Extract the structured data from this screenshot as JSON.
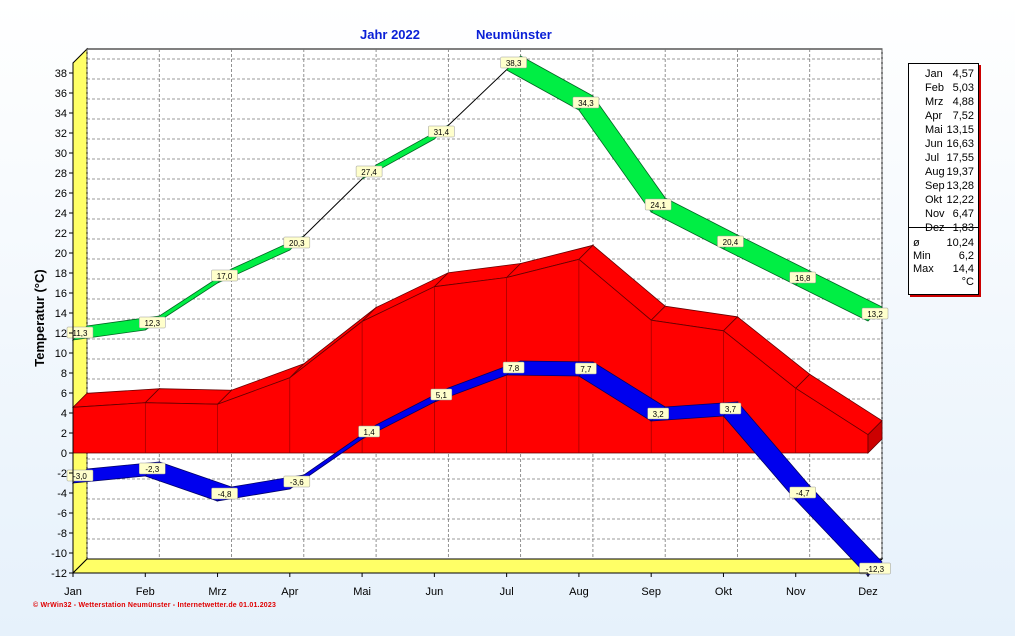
{
  "header": {
    "year_label": "Jahr  2022",
    "location": "Neumünster"
  },
  "footer": {
    "text": "© WrWin32 - Wetterstation Neumünster - Internetwetter.de  01.01.2023"
  },
  "legend": {
    "rows": [
      {
        "label": "Jan",
        "value": "4,57"
      },
      {
        "label": "Feb",
        "value": "5,03"
      },
      {
        "label": "Mrz",
        "value": "4,88"
      },
      {
        "label": "Apr",
        "value": "7,52"
      },
      {
        "label": "Mai",
        "value": "13,15"
      },
      {
        "label": "Jun",
        "value": "16,63"
      },
      {
        "label": "Jul",
        "value": "17,55"
      },
      {
        "label": "Aug",
        "value": "19,37"
      },
      {
        "label": "Sep",
        "value": "13,28"
      },
      {
        "label": "Okt",
        "value": "12,22"
      },
      {
        "label": "Nov",
        "value": "6,47"
      },
      {
        "label": "Dez",
        "value": "1,83"
      }
    ],
    "summary": [
      {
        "label": "ø",
        "value": "10,24"
      },
      {
        "label": "Min",
        "value": "6,2"
      },
      {
        "label": "Max",
        "value": "14,4"
      },
      {
        "label": "",
        "value": "°C"
      }
    ]
  },
  "chart_data": {
    "type": "area",
    "ylabel": "Temperatur  (°C)",
    "ylim": [
      -12,
      39
    ],
    "yticks": [
      -12,
      -10,
      -8,
      -6,
      -4,
      -2,
      0,
      2,
      4,
      6,
      8,
      10,
      12,
      14,
      16,
      18,
      20,
      22,
      24,
      26,
      28,
      30,
      32,
      34,
      36,
      38
    ],
    "categories": [
      "Jan",
      "Feb",
      "Mrz",
      "Apr",
      "Mai",
      "Jun",
      "Jul",
      "Aug",
      "Sep",
      "Okt",
      "Nov",
      "Dez"
    ],
    "grid": true,
    "series": [
      {
        "kind": "max",
        "color": "#00ee44",
        "values": [
          11.3,
          12.3,
          17.0,
          20.3,
          27.4,
          31.4,
          38.3,
          34.3,
          24.1,
          20.4,
          16.8,
          13.2
        ],
        "labels": [
          "11,3",
          "12,3",
          "17,0",
          "20,3",
          "27,4",
          "31,4",
          "38,3",
          "34,3",
          "24,1",
          "20,4",
          "16,8",
          "13,2"
        ]
      },
      {
        "kind": "mean",
        "color": "#ff0000",
        "values": [
          4.57,
          5.03,
          4.88,
          7.52,
          13.15,
          16.63,
          17.55,
          19.37,
          13.28,
          12.22,
          6.47,
          1.83
        ]
      },
      {
        "kind": "min",
        "color": "#0000ee",
        "values": [
          -3.0,
          -2.3,
          -4.8,
          -3.6,
          1.4,
          5.1,
          7.8,
          7.7,
          3.2,
          3.7,
          -4.7,
          -12.3
        ],
        "labels": [
          "-3,0",
          "-2,3",
          "-4,8",
          "-3,6",
          "1,4",
          "5,1",
          "7,8",
          "7,7",
          "3,2",
          "3,7",
          "-4,7",
          "-12,3"
        ]
      }
    ]
  }
}
